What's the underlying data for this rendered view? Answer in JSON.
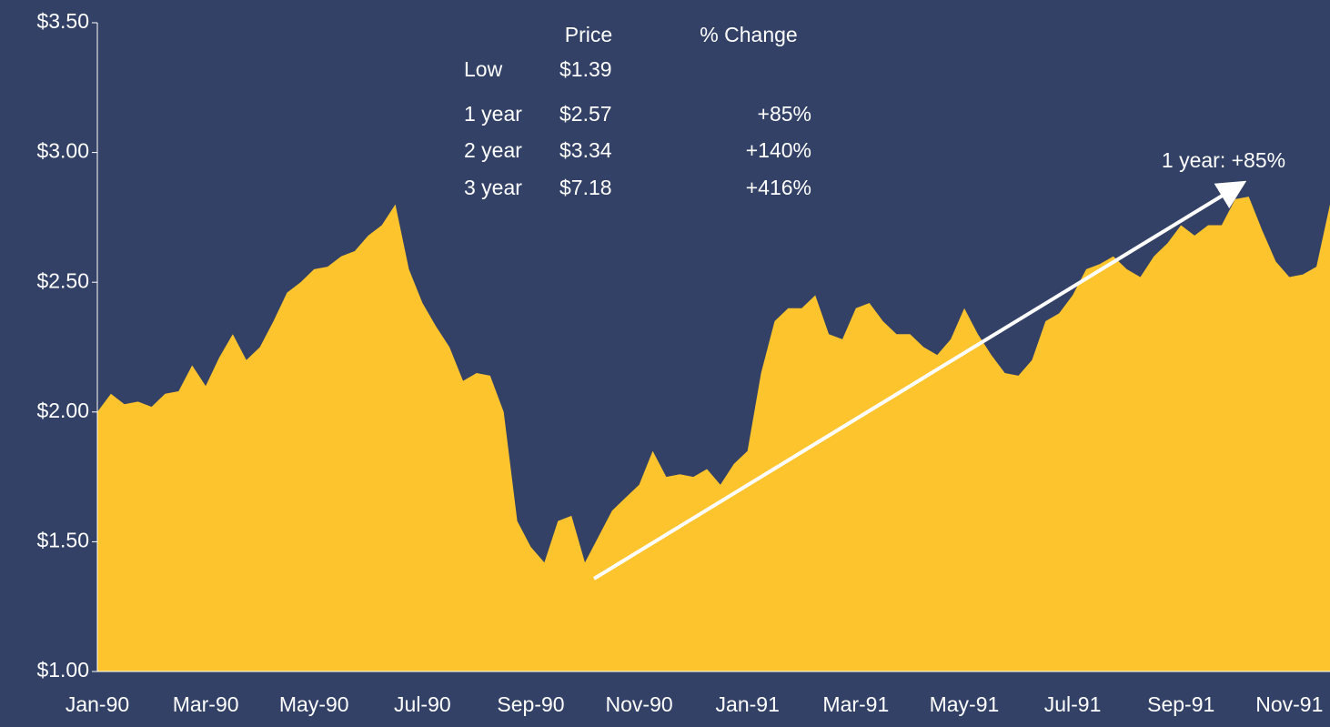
{
  "chart_data": {
    "type": "area",
    "color": "#fec42e",
    "ylim": [
      1,
      3.5
    ],
    "yticks": [
      {
        "value": 1,
        "label": "$1.00"
      },
      {
        "value": 1.5,
        "label": "$1.50"
      },
      {
        "value": 2,
        "label": "$2.00"
      },
      {
        "value": 2.5,
        "label": "$2.50"
      },
      {
        "value": 3,
        "label": "$3.00"
      },
      {
        "value": 3.5,
        "label": "$3.50"
      }
    ],
    "categories": [
      "Jan-90",
      null,
      null,
      null,
      null,
      null,
      null,
      null,
      "Mar-90",
      null,
      null,
      null,
      null,
      null,
      null,
      null,
      "May-90",
      null,
      null,
      null,
      null,
      null,
      null,
      null,
      "Jul-90",
      null,
      null,
      null,
      null,
      null,
      null,
      null,
      "Sep-90",
      null,
      null,
      null,
      null,
      null,
      null,
      null,
      "Nov-90",
      null,
      null,
      null,
      null,
      null,
      null,
      null,
      "Jan-91",
      null,
      null,
      null,
      null,
      null,
      null,
      null,
      "Mar-91",
      null,
      null,
      null,
      null,
      null,
      null,
      null,
      "May-91",
      null,
      null,
      null,
      null,
      null,
      null,
      null,
      "Jul-91",
      null,
      null,
      null,
      null,
      null,
      null,
      null,
      "Sep-91",
      null,
      null,
      null,
      null,
      null,
      null,
      null,
      "Nov-91",
      null,
      null,
      null
    ],
    "values": [
      2.0,
      2.07,
      2.03,
      2.04,
      2.02,
      2.07,
      2.08,
      2.18,
      2.1,
      2.21,
      2.3,
      2.2,
      2.25,
      2.35,
      2.46,
      2.5,
      2.55,
      2.56,
      2.6,
      2.62,
      2.68,
      2.72,
      2.8,
      2.55,
      2.42,
      2.33,
      2.25,
      2.12,
      2.15,
      2.14,
      2.0,
      1.58,
      1.48,
      1.42,
      1.58,
      1.6,
      1.42,
      1.52,
      1.62,
      1.67,
      1.72,
      1.85,
      1.75,
      1.76,
      1.75,
      1.78,
      1.72,
      1.8,
      1.85,
      2.15,
      2.35,
      2.4,
      2.4,
      2.45,
      2.3,
      2.28,
      2.4,
      2.42,
      2.35,
      2.3,
      2.3,
      2.25,
      2.22,
      2.28,
      2.4,
      2.3,
      2.22,
      2.15,
      2.14,
      2.2,
      2.35,
      2.38,
      2.45,
      2.55,
      2.57,
      2.6,
      2.55,
      2.52,
      2.6,
      2.65,
      2.72,
      2.68,
      2.72,
      2.72,
      2.82,
      2.83,
      2.7,
      2.58,
      2.52,
      2.53,
      2.56,
      2.8
    ],
    "annotation": "1 year: +85%",
    "table": {
      "headers": [
        "Price",
        "% Change"
      ],
      "rows": [
        {
          "label": "Low",
          "price": "$1.39"
        },
        {
          "label": "1 year",
          "price": "$2.57",
          "change": "+85%"
        },
        {
          "label": "2 year",
          "price": "$3.34",
          "change": "+140%"
        },
        {
          "label": "3 year",
          "price": "$7.18",
          "change": "+416%"
        }
      ]
    }
  }
}
